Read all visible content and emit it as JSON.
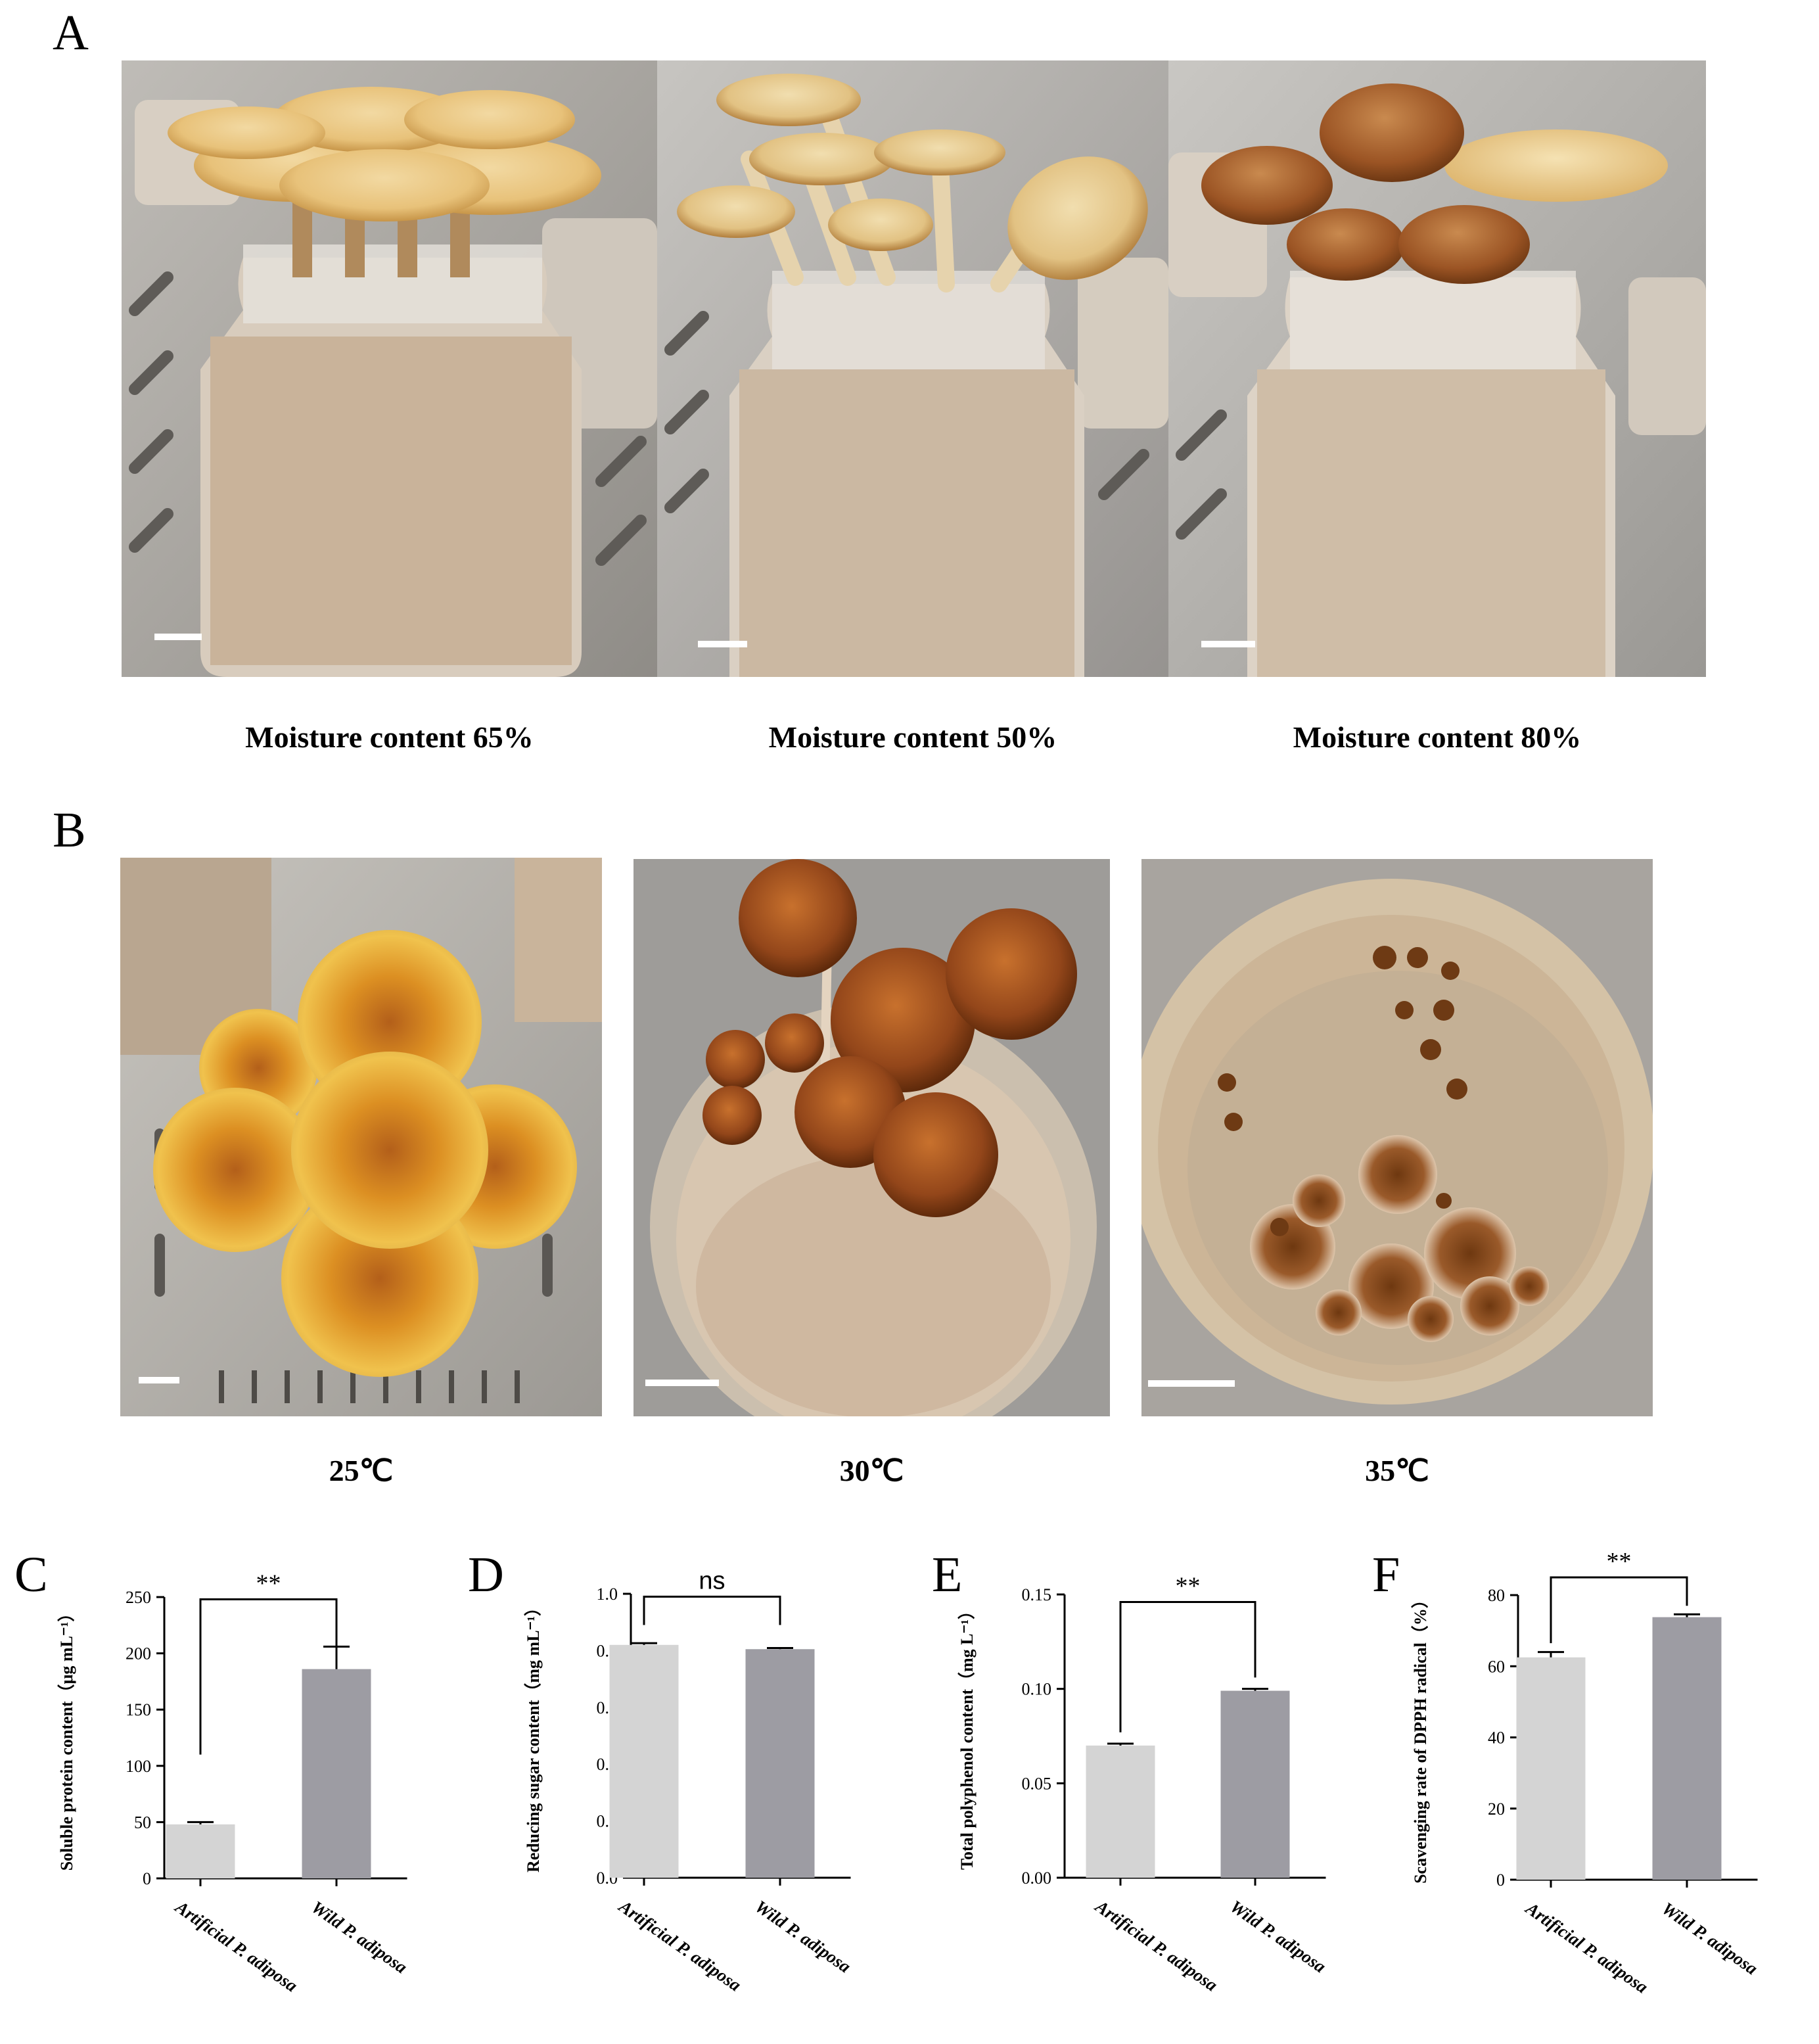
{
  "panels": {
    "A": {
      "letter": "A",
      "captions": [
        "Moisture content 65%",
        "Moisture content 50%",
        "Moisture content 80%"
      ]
    },
    "B": {
      "letter": "B",
      "captions": [
        "25℃",
        "30℃",
        "35℃"
      ]
    }
  },
  "colors": {
    "artificial_bar": "#d4d4d4",
    "wild_bar": "#9d9ca3",
    "cap_orange": "#d9962e",
    "cap_brown": "#8a4a1c",
    "substrate": "#d8c6b2"
  },
  "chart_data": [
    {
      "letter": "C",
      "type": "bar",
      "categories": [
        "Artificial P. adiposa",
        "Wild P. adiposa"
      ],
      "values": [
        48,
        186
      ],
      "errors": [
        2,
        20
      ],
      "ylabel": "Soluble protein content（μg mL⁻¹）",
      "ylim": [
        0,
        250
      ],
      "yticks": [
        "0",
        "50",
        "100",
        "150",
        "200",
        "250"
      ],
      "tickvals": [
        0,
        50,
        100,
        150,
        200,
        250
      ],
      "significance": "**",
      "bracket_left": 110,
      "bracket_right": 205,
      "bracket_top": 248
    },
    {
      "letter": "D",
      "type": "bar",
      "categories": [
        "Artificial P. adiposa",
        "Wild P. adiposa"
      ],
      "values": [
        0.82,
        0.805
      ],
      "errors": [
        0.006,
        0.004
      ],
      "ylabel": "Reducing sugar content（mg mL⁻¹）",
      "ylim": [
        0,
        1.0
      ],
      "yticks": [
        "0.0",
        "0.2",
        "0.4",
        "0.6",
        "0.8",
        "1.0"
      ],
      "tickvals": [
        0,
        0.2,
        0.4,
        0.6,
        0.8,
        1.0
      ],
      "significance": "ns",
      "bracket_left": 0.89,
      "bracket_right": 0.89,
      "bracket_top": 0.99
    },
    {
      "letter": "E",
      "type": "bar",
      "categories": [
        "Artificial P. adiposa",
        "Wild P. adiposa"
      ],
      "values": [
        0.07,
        0.099
      ],
      "errors": [
        0.001,
        0.001
      ],
      "ylabel": "Total polyphenol content（mg L⁻¹）",
      "ylim": [
        0,
        0.15
      ],
      "yticks": [
        "0.00",
        "0.05",
        "0.10",
        "0.15"
      ],
      "tickvals": [
        0,
        0.05,
        0.1,
        0.15
      ],
      "significance": "**",
      "bracket_left": 0.077,
      "bracket_right": 0.106,
      "bracket_top": 0.146
    },
    {
      "letter": "F",
      "type": "bar",
      "categories": [
        "Artificial P. adiposa",
        "Wild P. adiposa"
      ],
      "values": [
        62.5,
        73.8
      ],
      "errors": [
        1.5,
        0.8
      ],
      "ylabel": "Scavenging rate of DPPH radical（%）",
      "ylim": [
        0,
        80
      ],
      "yticks": [
        "0",
        "20",
        "40",
        "60",
        "80"
      ],
      "tickvals": [
        0,
        20,
        40,
        60,
        80
      ],
      "significance": "**",
      "bracket_left": 66.5,
      "bracket_right": 77,
      "bracket_top": 85
    }
  ]
}
